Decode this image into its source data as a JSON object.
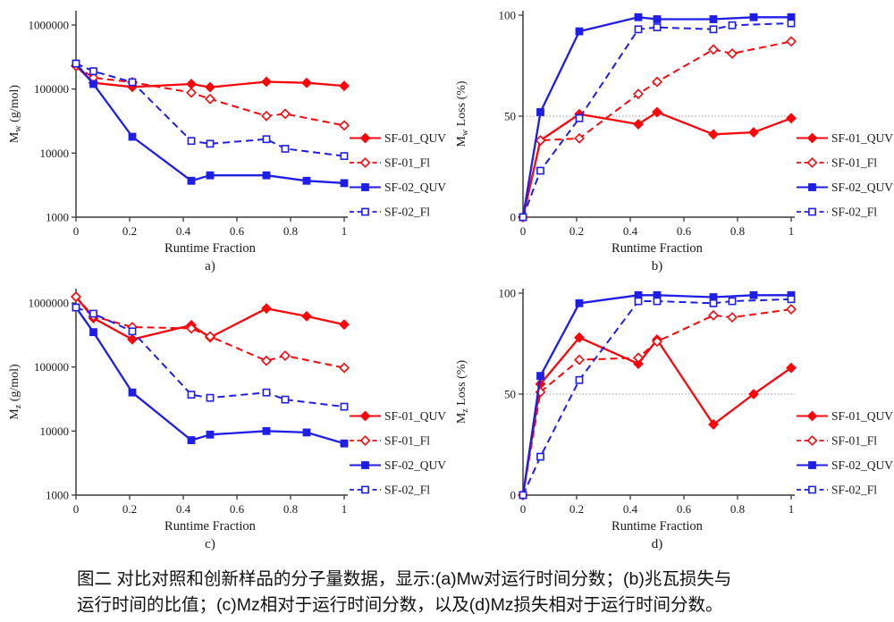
{
  "figure": {
    "caption_line1": "图二  对比对照和创新样品的分子量数据，显示:(a)Mw对运行时间分数；(b)兆瓦损失与",
    "caption_line2": "运行时间的比值；(c)Mz相对于运行时间分数，以及(d)Mz损失相对于运行时间分数。"
  },
  "colors": {
    "red": "#fa060c",
    "blue": "#1e1ee6",
    "axis": "#3c3c3c",
    "text": "#1a1a1a",
    "gridline": "#9a9a9a",
    "background": "#ffffff"
  },
  "chart_data": [
    {
      "type": "line",
      "panel": "a",
      "sublabel": "a)",
      "xlabel": "Runtime Fraction",
      "ylabel": {
        "base": "M",
        "sub": "w",
        "rest": " (g/mol)"
      },
      "yscale": "log",
      "ylim": [
        1000,
        1000000
      ],
      "yticks": [
        1000,
        10000,
        100000,
        1000000
      ],
      "ytick_labels": [
        "1000",
        "10000",
        "100000",
        "1000000"
      ],
      "xticks": [
        0,
        0.2,
        0.4,
        0.6,
        0.8,
        1
      ],
      "xtick_labels": [
        "0",
        "0.2",
        "0.4",
        "0.6",
        "0.8",
        "1"
      ],
      "gridline_y": null,
      "legend_position": "right-outside",
      "series": [
        {
          "name": "SF-01_QUV",
          "color": "red",
          "line": "solid",
          "marker": "diamond",
          "fill": "solid",
          "x": [
            0,
            0.065,
            0.21,
            0.43,
            0.5,
            0.71,
            0.86,
            1
          ],
          "y": [
            230000,
            125000,
            108000,
            120000,
            107000,
            130000,
            125000,
            112000
          ]
        },
        {
          "name": "SF-01_Fl",
          "color": "red",
          "line": "dashed",
          "marker": "diamond",
          "fill": "open",
          "x": [
            0,
            0.065,
            0.21,
            0.43,
            0.5,
            0.71,
            0.78,
            1
          ],
          "y": [
            230000,
            150000,
            128000,
            88000,
            70000,
            38000,
            41000,
            27000
          ]
        },
        {
          "name": "SF-02_QUV",
          "color": "blue",
          "line": "solid",
          "marker": "square",
          "fill": "solid",
          "x": [
            0,
            0.065,
            0.21,
            0.43,
            0.5,
            0.71,
            0.86,
            1
          ],
          "y": [
            250000,
            120000,
            18000,
            3700,
            4500,
            4500,
            3700,
            3400
          ]
        },
        {
          "name": "SF-02_Fl",
          "color": "blue",
          "line": "dashed",
          "marker": "square",
          "fill": "open",
          "x": [
            0,
            0.065,
            0.21,
            0.43,
            0.5,
            0.71,
            0.78,
            1
          ],
          "y": [
            250000,
            190000,
            128000,
            15500,
            14000,
            16500,
            11700,
            9000
          ]
        }
      ]
    },
    {
      "type": "line",
      "panel": "b",
      "sublabel": "b)",
      "xlabel": "Runtime Fraction",
      "ylabel": {
        "base": "M",
        "sub": "w",
        "rest": " Loss (%)"
      },
      "yscale": "linear",
      "ylim": [
        0,
        100
      ],
      "yticks": [
        0,
        50,
        100
      ],
      "ytick_labels": [
        "0",
        "50",
        "100"
      ],
      "xticks": [
        0,
        0.2,
        0.4,
        0.6,
        0.8,
        1
      ],
      "xtick_labels": [
        "0",
        "0.2",
        "0.4",
        "0.6",
        "0.8",
        "1"
      ],
      "gridline_y": 50,
      "legend_position": "right-outside",
      "series": [
        {
          "name": "SF-01_QUV",
          "color": "red",
          "line": "solid",
          "marker": "diamond",
          "fill": "solid",
          "x": [
            0,
            0.065,
            0.21,
            0.43,
            0.5,
            0.71,
            0.86,
            1
          ],
          "y": [
            0,
            38,
            51,
            46,
            52,
            41,
            42,
            49
          ]
        },
        {
          "name": "SF-01_Fl",
          "color": "red",
          "line": "dashed",
          "marker": "diamond",
          "fill": "open",
          "x": [
            0,
            0.065,
            0.21,
            0.43,
            0.5,
            0.71,
            0.78,
            1
          ],
          "y": [
            0,
            38,
            39,
            61,
            67,
            83,
            81,
            87
          ]
        },
        {
          "name": "SF-02_QUV",
          "color": "blue",
          "line": "solid",
          "marker": "square",
          "fill": "solid",
          "x": [
            0,
            0.065,
            0.21,
            0.43,
            0.5,
            0.71,
            0.86,
            1
          ],
          "y": [
            0,
            52,
            92,
            99,
            98,
            98,
            99,
            99
          ]
        },
        {
          "name": "SF-02_Fl",
          "color": "blue",
          "line": "dashed",
          "marker": "square",
          "fill": "open",
          "x": [
            0,
            0.065,
            0.21,
            0.43,
            0.5,
            0.71,
            0.78,
            1
          ],
          "y": [
            0,
            23,
            49,
            93,
            94,
            93,
            95,
            96
          ]
        }
      ]
    },
    {
      "type": "line",
      "panel": "c",
      "sublabel": "c)",
      "xlabel": "Runtime Fraction",
      "ylabel": {
        "base": "M",
        "sub": "z",
        "rest": " (g/mol)"
      },
      "yscale": "log",
      "ylim": [
        1000,
        1000000
      ],
      "yticks": [
        1000,
        10000,
        100000,
        1000000
      ],
      "ytick_labels": [
        "1000",
        "10000",
        "100000",
        "1000000"
      ],
      "xticks": [
        0,
        0.2,
        0.4,
        0.6,
        0.8,
        1
      ],
      "xtick_labels": [
        "0",
        "0.2",
        "0.4",
        "0.6",
        "0.8",
        "1"
      ],
      "gridline_y": null,
      "legend_position": "right-outside",
      "series": [
        {
          "name": "SF-01_QUV",
          "color": "red",
          "line": "solid",
          "marker": "diamond",
          "fill": "solid",
          "x": [
            0,
            0.065,
            0.21,
            0.43,
            0.5,
            0.71,
            0.86,
            1
          ],
          "y": [
            1250000,
            580000,
            270000,
            450000,
            290000,
            820000,
            620000,
            460000
          ]
        },
        {
          "name": "SF-01_Fl",
          "color": "red",
          "line": "dashed",
          "marker": "diamond",
          "fill": "open",
          "x": [
            0,
            0.065,
            0.21,
            0.43,
            0.5,
            0.71,
            0.78,
            1
          ],
          "y": [
            1250000,
            620000,
            420000,
            400000,
            300000,
            125000,
            150000,
            97000
          ]
        },
        {
          "name": "SF-02_QUV",
          "color": "blue",
          "line": "solid",
          "marker": "square",
          "fill": "solid",
          "x": [
            0,
            0.065,
            0.21,
            0.43,
            0.5,
            0.71,
            0.86,
            1
          ],
          "y": [
            850000,
            350000,
            40000,
            7200,
            8800,
            10000,
            9500,
            6400
          ]
        },
        {
          "name": "SF-02_Fl",
          "color": "blue",
          "line": "dashed",
          "marker": "square",
          "fill": "open",
          "x": [
            0,
            0.065,
            0.21,
            0.43,
            0.5,
            0.71,
            0.78,
            1
          ],
          "y": [
            850000,
            680000,
            360000,
            37000,
            33000,
            40000,
            31000,
            24000
          ]
        }
      ]
    },
    {
      "type": "line",
      "panel": "d",
      "sublabel": "d)",
      "xlabel": "Runtime Fraction",
      "ylabel": {
        "base": "M",
        "sub": "z",
        "rest": " Loss (%)"
      },
      "yscale": "linear",
      "ylim": [
        0,
        100
      ],
      "yticks": [
        0,
        50,
        100
      ],
      "ytick_labels": [
        "0",
        "50",
        "100"
      ],
      "xticks": [
        0,
        0.2,
        0.4,
        0.6,
        0.8,
        1
      ],
      "xtick_labels": [
        "0",
        "0.2",
        "0.4",
        "0.6",
        "0.8",
        "1"
      ],
      "gridline_y": 50,
      "legend_position": "right-outside",
      "series": [
        {
          "name": "SF-01_QUV",
          "color": "red",
          "line": "solid",
          "marker": "diamond",
          "fill": "solid",
          "x": [
            0,
            0.065,
            0.21,
            0.43,
            0.5,
            0.71,
            0.86,
            1
          ],
          "y": [
            0,
            55,
            78,
            65,
            77,
            35,
            50,
            63
          ]
        },
        {
          "name": "SF-01_Fl",
          "color": "red",
          "line": "dashed",
          "marker": "diamond",
          "fill": "open",
          "x": [
            0,
            0.065,
            0.21,
            0.43,
            0.5,
            0.71,
            0.78,
            1
          ],
          "y": [
            0,
            51,
            67,
            68,
            76,
            89,
            88,
            92
          ]
        },
        {
          "name": "SF-02_QUV",
          "color": "blue",
          "line": "solid",
          "marker": "square",
          "fill": "solid",
          "x": [
            0,
            0.065,
            0.21,
            0.43,
            0.5,
            0.71,
            0.86,
            1
          ],
          "y": [
            0,
            59,
            95,
            99,
            99,
            98,
            99,
            99
          ]
        },
        {
          "name": "SF-02_Fl",
          "color": "blue",
          "line": "dashed",
          "marker": "square",
          "fill": "open",
          "x": [
            0,
            0.065,
            0.21,
            0.43,
            0.5,
            0.71,
            0.78,
            1
          ],
          "y": [
            0,
            19,
            57,
            96,
            96,
            95,
            96,
            97
          ]
        }
      ]
    }
  ]
}
